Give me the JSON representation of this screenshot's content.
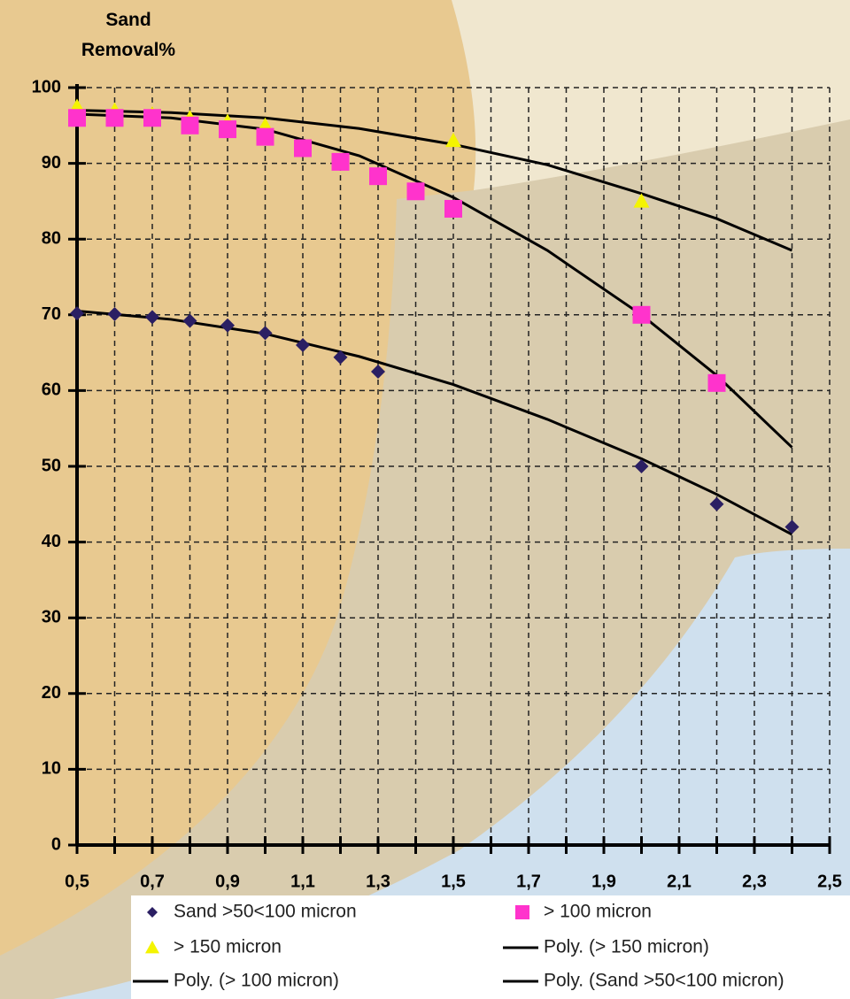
{
  "chart_data": {
    "type": "scatter",
    "ylabel": "Sand Removal%",
    "xlim": [
      0.5,
      2.5
    ],
    "ylim": [
      0,
      100
    ],
    "xticks": [
      {
        "value": 0.5,
        "label": "0,5"
      },
      {
        "value": 0.7,
        "label": "0,7"
      },
      {
        "value": 0.9,
        "label": "0,9"
      },
      {
        "value": 1.1,
        "label": "1,1"
      },
      {
        "value": 1.3,
        "label": "1,3"
      },
      {
        "value": 1.5,
        "label": "1,5"
      },
      {
        "value": 1.7,
        "label": "1,7"
      },
      {
        "value": 1.9,
        "label": "1,9"
      },
      {
        "value": 2.1,
        "label": "2,1"
      },
      {
        "value": 2.3,
        "label": "2,3"
      },
      {
        "value": 2.5,
        "label": "2,5"
      }
    ],
    "x_minor_ticks": [
      0.6,
      0.8,
      1.0,
      1.2,
      1.4,
      1.6,
      1.8,
      2.0,
      2.2,
      2.4
    ],
    "yticks": [
      0,
      10,
      20,
      30,
      40,
      50,
      60,
      70,
      80,
      90,
      100
    ],
    "grid": true,
    "series": [
      {
        "name": "Sand >50<100 micron",
        "marker": "diamond",
        "color": "#2b1f63",
        "x": [
          0.5,
          0.6,
          0.7,
          0.8,
          0.9,
          1.0,
          1.1,
          1.2,
          1.3,
          2.0,
          2.2,
          2.4
        ],
        "values": [
          70.2,
          70.1,
          69.7,
          69.2,
          68.6,
          67.6,
          66.0,
          64.4,
          62.5,
          50,
          45,
          42
        ]
      },
      {
        "name": "> 100 micron",
        "marker": "square",
        "color": "#ff33cc",
        "x": [
          0.5,
          0.6,
          0.7,
          0.8,
          0.9,
          1.0,
          1.1,
          1.2,
          1.3,
          1.4,
          1.5,
          2.0,
          2.2
        ],
        "values": [
          96,
          96,
          96,
          95,
          94.5,
          93.5,
          92,
          90.2,
          88.3,
          86.3,
          84,
          70,
          61
        ]
      },
      {
        "name": "> 150 micron",
        "marker": "triangle",
        "color": "#f4f400",
        "x": [
          0.5,
          0.6,
          0.7,
          0.8,
          0.9,
          1.0,
          1.5,
          2.0
        ],
        "values": [
          97.5,
          97,
          96.5,
          96,
          95.5,
          95,
          93,
          85
        ]
      },
      {
        "name": "Poly. (> 150 micron)",
        "marker": "line",
        "color": "#000000",
        "x": [
          0.5,
          0.75,
          1.0,
          1.25,
          1.5,
          1.75,
          2.0,
          2.2,
          2.4
        ],
        "values": [
          97,
          96.7,
          96,
          94.6,
          92.5,
          89.8,
          86,
          82.7,
          78.5
        ]
      },
      {
        "name": "Poly. (> 100 micron)",
        "marker": "line",
        "color": "#000000",
        "x": [
          0.5,
          0.75,
          1.0,
          1.25,
          1.5,
          1.75,
          2.0,
          2.2,
          2.4
        ],
        "values": [
          96.5,
          96,
          94.5,
          91,
          85.5,
          78.5,
          70,
          62,
          52.5
        ]
      },
      {
        "name": "Poly. (Sand >50<100 micron)",
        "marker": "line",
        "color": "#000000",
        "x": [
          0.5,
          0.75,
          1.0,
          1.25,
          1.5,
          1.75,
          2.0,
          2.2,
          2.4
        ],
        "values": [
          70.5,
          69.4,
          67.5,
          64.5,
          60.8,
          56.2,
          51,
          46.3,
          41
        ]
      }
    ]
  }
}
